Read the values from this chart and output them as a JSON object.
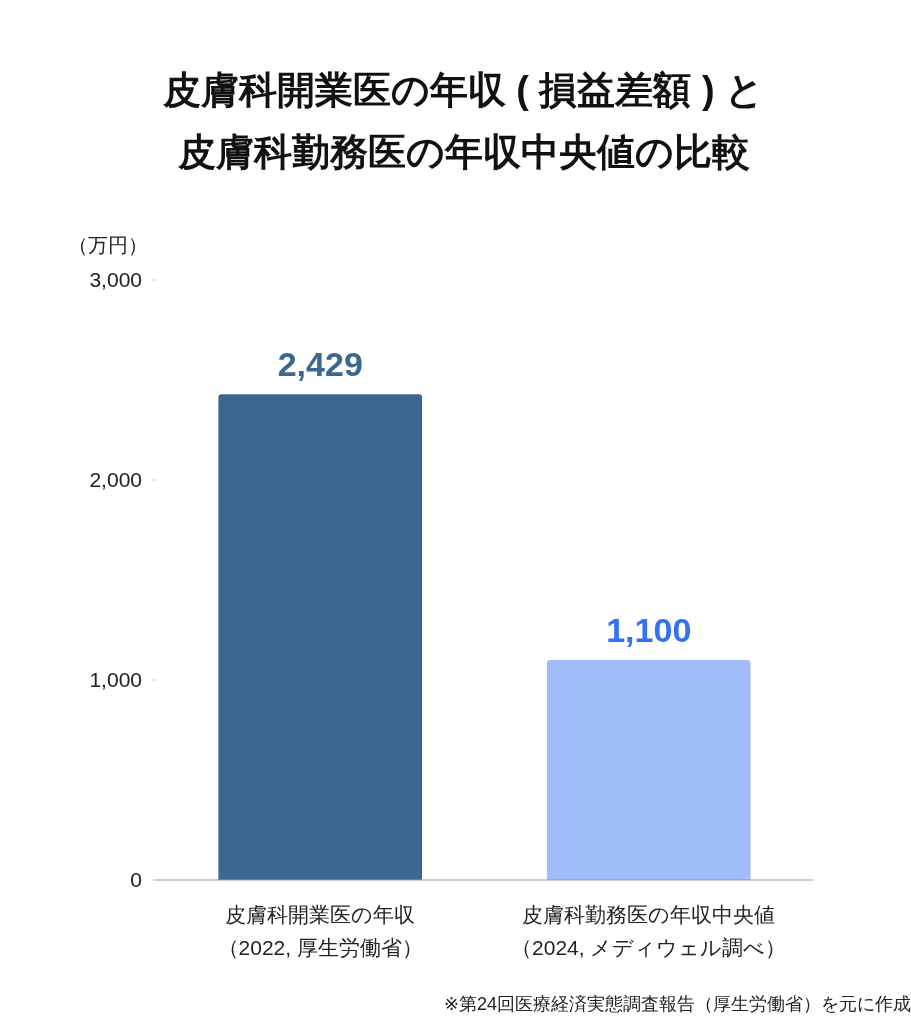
{
  "chart_data": {
    "type": "bar",
    "title": "皮膚科開業医の年収 ( 損益差額 ) と皮膚科勤務医の年収中央値の比較",
    "ylabel": "（万円）",
    "categories": [
      "皮膚科開業医の年収（2022, 厚生労働省）",
      "皮膚科勤務医の年収中央値（2024, メディウェル調べ）"
    ],
    "values": [
      2429,
      1100
    ],
    "colors": [
      "#3b6790",
      "#a0bcfa"
    ],
    "value_labels": [
      "2,429",
      "1,100"
    ],
    "ylim": [
      0,
      3000
    ],
    "yticks": [
      0,
      {
        "value": 1000,
        "label": "1,000"
      },
      {
        "value": 2000,
        "label": "2,000"
      },
      {
        "value": 3000,
        "label": "3,000"
      }
    ],
    "annotations": [
      "※第24回医療経済実態調査報告（厚生労働省）を元に作成"
    ]
  }
}
